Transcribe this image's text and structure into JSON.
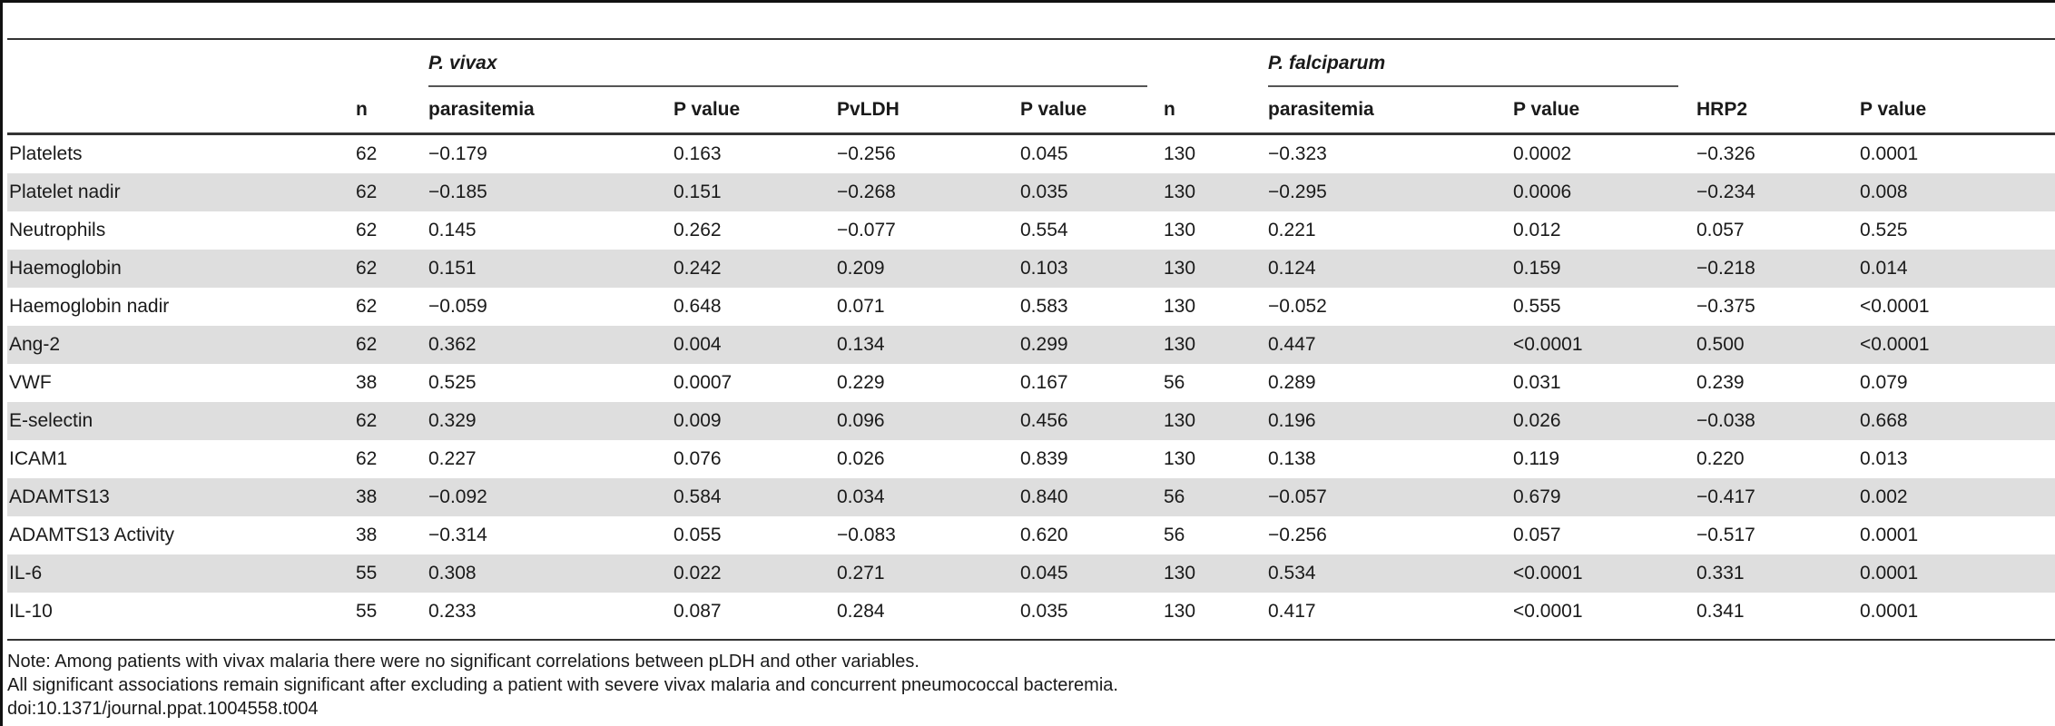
{
  "table": {
    "species_headers": {
      "vivax": "P. vivax",
      "falciparum": "P. falciparum"
    },
    "columns": [
      "",
      "n",
      "parasitemia",
      "P value",
      "PvLDH",
      "P value",
      "n",
      "parasitemia",
      "P value",
      "HRP2",
      "P value"
    ],
    "rows": [
      [
        "Platelets",
        "62",
        "−0.179",
        "0.163",
        "−0.256",
        "0.045",
        "130",
        "−0.323",
        "0.0002",
        "−0.326",
        "0.0001"
      ],
      [
        "Platelet nadir",
        "62",
        "−0.185",
        "0.151",
        "−0.268",
        "0.035",
        "130",
        "−0.295",
        "0.0006",
        "−0.234",
        "0.008"
      ],
      [
        "Neutrophils",
        "62",
        "0.145",
        "0.262",
        "−0.077",
        "0.554",
        "130",
        "0.221",
        "0.012",
        "0.057",
        "0.525"
      ],
      [
        "Haemoglobin",
        "62",
        "0.151",
        "0.242",
        "0.209",
        "0.103",
        "130",
        "0.124",
        "0.159",
        "−0.218",
        "0.014"
      ],
      [
        "Haemoglobin nadir",
        "62",
        "−0.059",
        "0.648",
        "0.071",
        "0.583",
        "130",
        "−0.052",
        "0.555",
        "−0.375",
        "<0.0001"
      ],
      [
        "Ang-2",
        "62",
        "0.362",
        "0.004",
        "0.134",
        "0.299",
        "130",
        "0.447",
        "<0.0001",
        "0.500",
        "<0.0001"
      ],
      [
        "VWF",
        "38",
        "0.525",
        "0.0007",
        "0.229",
        "0.167",
        "56",
        "0.289",
        "0.031",
        "0.239",
        "0.079"
      ],
      [
        "E-selectin",
        "62",
        "0.329",
        "0.009",
        "0.096",
        "0.456",
        "130",
        "0.196",
        "0.026",
        "−0.038",
        "0.668"
      ],
      [
        "ICAM1",
        "62",
        "0.227",
        "0.076",
        "0.026",
        "0.839",
        "130",
        "0.138",
        "0.119",
        "0.220",
        "0.013"
      ],
      [
        "ADAMTS13",
        "38",
        "−0.092",
        "0.584",
        "0.034",
        "0.840",
        "56",
        "−0.057",
        "0.679",
        "−0.417",
        "0.002"
      ],
      [
        "ADAMTS13 Activity",
        "38",
        "−0.314",
        "0.055",
        "−0.083",
        "0.620",
        "56",
        "−0.256",
        "0.057",
        "−0.517",
        "0.0001"
      ],
      [
        "IL-6",
        "55",
        "0.308",
        "0.022",
        "0.271",
        "0.045",
        "130",
        "0.534",
        "<0.0001",
        "0.331",
        "0.0001"
      ],
      [
        "IL-10",
        "55",
        "0.233",
        "0.087",
        "0.284",
        "0.035",
        "130",
        "0.417",
        "<0.0001",
        "0.341",
        "0.0001"
      ]
    ]
  },
  "notes": {
    "line1": "Note: Among patients with vivax malaria there were no significant correlations between pLDH and other variables.",
    "line2": "All significant associations remain significant after excluding a patient with severe vivax malaria and concurrent pneumococcal bacteremia.",
    "doi": "doi:10.1371/journal.ppat.1004558.t004"
  }
}
